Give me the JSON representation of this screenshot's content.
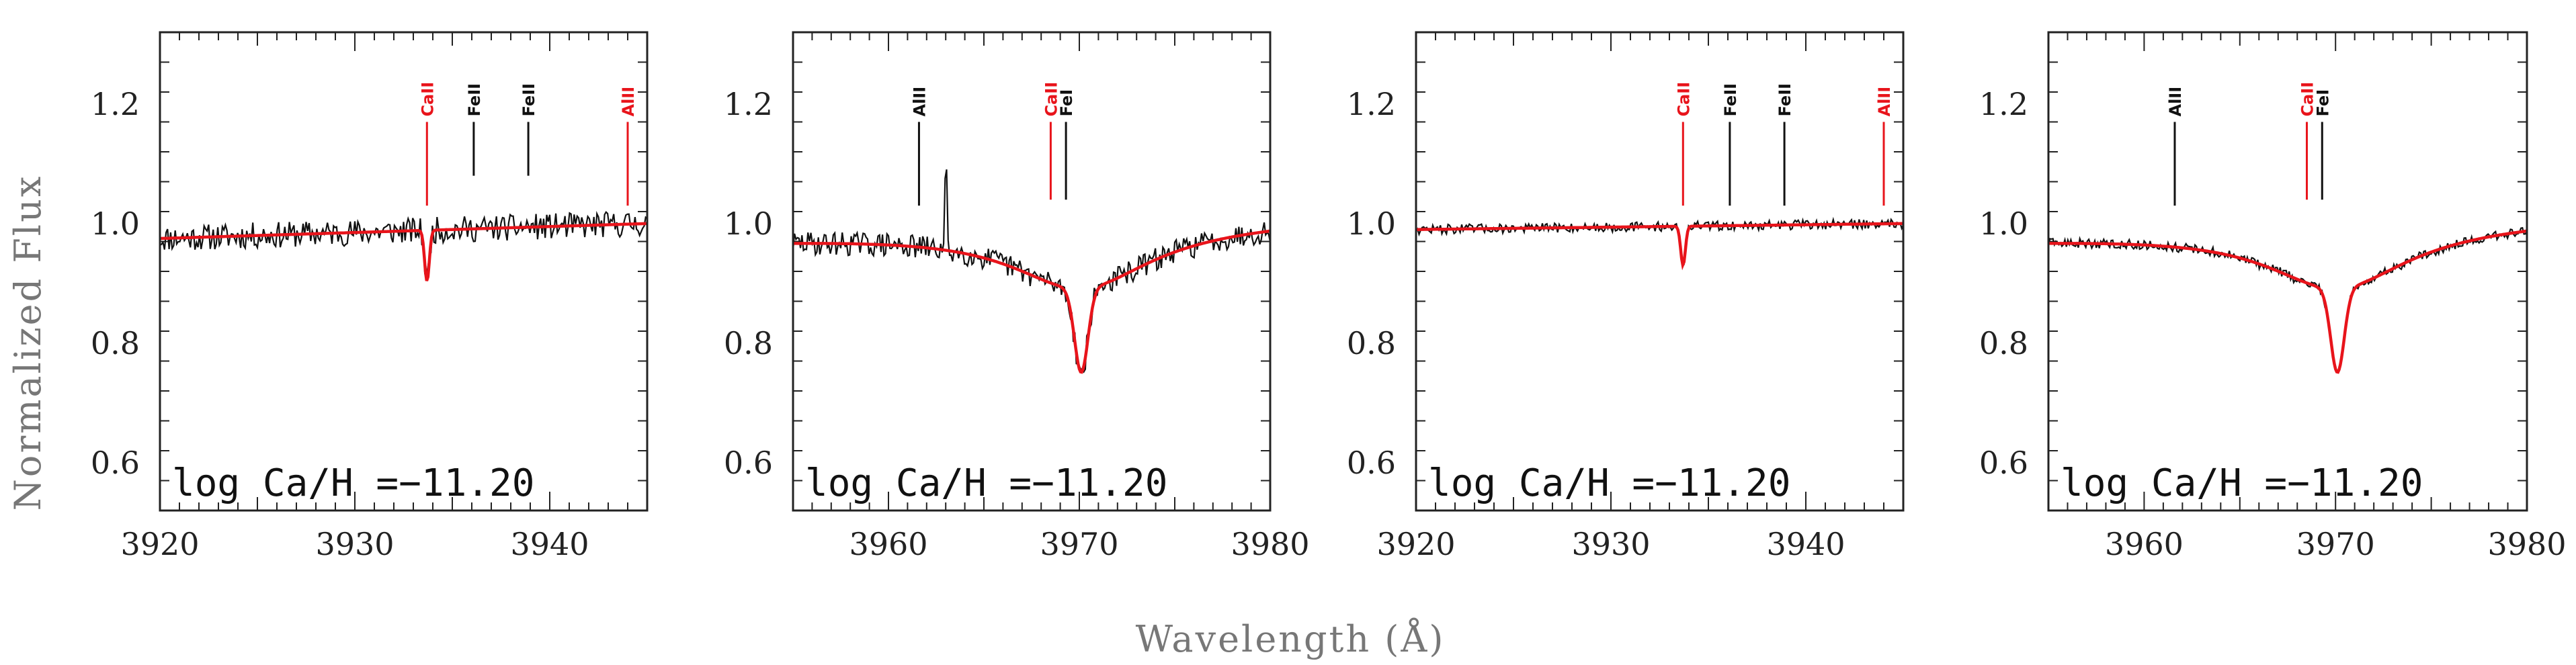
{
  "figure": {
    "ylabel": "Normalized Flux",
    "xlabel": "Wavelength (Å)"
  },
  "colors": {
    "observed": "#111111",
    "model": "#e8141b",
    "cont_blue": "#2233dd",
    "label_red": "#e8141b",
    "label_black": "#111111",
    "frame": "#222222"
  },
  "chart_data": [
    {
      "type": "line",
      "panel": 1,
      "xlim": [
        3920,
        3945
      ],
      "ylim": [
        0.52,
        1.32
      ],
      "xticks": [
        3920,
        3930,
        3940
      ],
      "yticks": [
        0.6,
        0.8,
        1.0,
        1.2
      ],
      "ytick_labels": [
        "0.6",
        "0.8",
        "1.0",
        "1.2"
      ],
      "annotation": "log Ca/H =−11.20",
      "model": {
        "cont_start": 0.975,
        "cont_end": 1.0,
        "lines": [
          {
            "center": 3933.7,
            "depth": 0.085,
            "width": 0.12,
            "wing": 0.0
          }
        ]
      },
      "observed": {
        "noise": 0.022,
        "seed": 11,
        "spikes": []
      },
      "line_labels": [
        {
          "text": "CaII",
          "x": 3933.7,
          "color": "red",
          "y_top": 1.17,
          "y_bottom": 1.03
        },
        {
          "text": "FeII",
          "x": 3936.1,
          "color": "black",
          "y_top": 1.17,
          "y_bottom": 1.08
        },
        {
          "text": "FeII",
          "x": 3938.9,
          "color": "black",
          "y_top": 1.17,
          "y_bottom": 1.08
        },
        {
          "text": "AlII",
          "x": 3944.0,
          "color": "red",
          "y_top": 1.17,
          "y_bottom": 1.03
        }
      ]
    },
    {
      "type": "line",
      "panel": 2,
      "xlim": [
        3955,
        3980
      ],
      "ylim": [
        0.52,
        1.32
      ],
      "xticks": [
        3960,
        3970,
        3980
      ],
      "yticks": [
        0.6,
        0.8,
        1.0,
        1.2
      ],
      "ytick_labels": [
        "0.6",
        "0.8",
        "1.0",
        "1.2"
      ],
      "annotation": "log Ca/H =−11.20",
      "model": {
        "cont_start": 0.975,
        "cont_end": 1.005,
        "lines": [
          {
            "center": 3970.1,
            "depth": 0.14,
            "width": 0.35,
            "wing": 4.5
          }
        ]
      },
      "observed": {
        "noise": 0.02,
        "seed": 29,
        "spikes": [
          {
            "x": 3963.0,
            "h": 0.12
          }
        ]
      },
      "line_labels": [
        {
          "text": "AlII",
          "x": 3961.6,
          "color": "black",
          "y_top": 1.17,
          "y_bottom": 1.03
        },
        {
          "text": "CaII",
          "x": 3968.5,
          "color": "red",
          "y_top": 1.17,
          "y_bottom": 1.04
        },
        {
          "text": "FeI",
          "x": 3969.3,
          "color": "black",
          "y_top": 1.17,
          "y_bottom": 1.04
        }
      ]
    },
    {
      "type": "line",
      "panel": 3,
      "xlim": [
        3920,
        3945
      ],
      "ylim": [
        0.52,
        1.32
      ],
      "xticks": [
        3920,
        3930,
        3940
      ],
      "yticks": [
        0.6,
        0.8,
        1.0,
        1.2
      ],
      "ytick_labels": [
        "0.6",
        "0.8",
        "1.0",
        "1.2"
      ],
      "annotation": "log Ca/H =−11.20",
      "model": {
        "cont_start": 0.99,
        "cont_end": 1.0,
        "lines": [
          {
            "center": 3933.7,
            "depth": 0.065,
            "width": 0.12,
            "wing": 0.0
          }
        ]
      },
      "observed": {
        "noise": 0.008,
        "seed": 47,
        "spikes": []
      },
      "line_labels": [
        {
          "text": "CaII",
          "x": 3933.7,
          "color": "red",
          "y_top": 1.17,
          "y_bottom": 1.03
        },
        {
          "text": "FeII",
          "x": 3936.1,
          "color": "black",
          "y_top": 1.17,
          "y_bottom": 1.03
        },
        {
          "text": "FeII",
          "x": 3938.9,
          "color": "black",
          "y_top": 1.17,
          "y_bottom": 1.03
        },
        {
          "text": "AlII",
          "x": 3944.0,
          "color": "red",
          "y_top": 1.17,
          "y_bottom": 1.03
        }
      ]
    },
    {
      "type": "line",
      "panel": 4,
      "xlim": [
        3955,
        3980
      ],
      "ylim": [
        0.52,
        1.32
      ],
      "xticks": [
        3960,
        3970,
        3980
      ],
      "yticks": [
        0.6,
        0.8,
        1.0,
        1.2
      ],
      "ytick_labels": [
        "0.6",
        "0.8",
        "1.0",
        "1.2"
      ],
      "annotation": "log Ca/H =−11.20",
      "model": {
        "cont_start": 0.975,
        "cont_end": 1.005,
        "lines": [
          {
            "center": 3970.1,
            "depth": 0.14,
            "width": 0.35,
            "wing": 4.5
          }
        ]
      },
      "observed": {
        "noise": 0.008,
        "seed": 63,
        "spikes": []
      },
      "line_labels": [
        {
          "text": "AlII",
          "x": 3961.6,
          "color": "black",
          "y_top": 1.17,
          "y_bottom": 1.03
        },
        {
          "text": "CaII",
          "x": 3968.5,
          "color": "red",
          "y_top": 1.17,
          "y_bottom": 1.04
        },
        {
          "text": "FeI",
          "x": 3969.3,
          "color": "black",
          "y_top": 1.17,
          "y_bottom": 1.04
        }
      ]
    }
  ]
}
